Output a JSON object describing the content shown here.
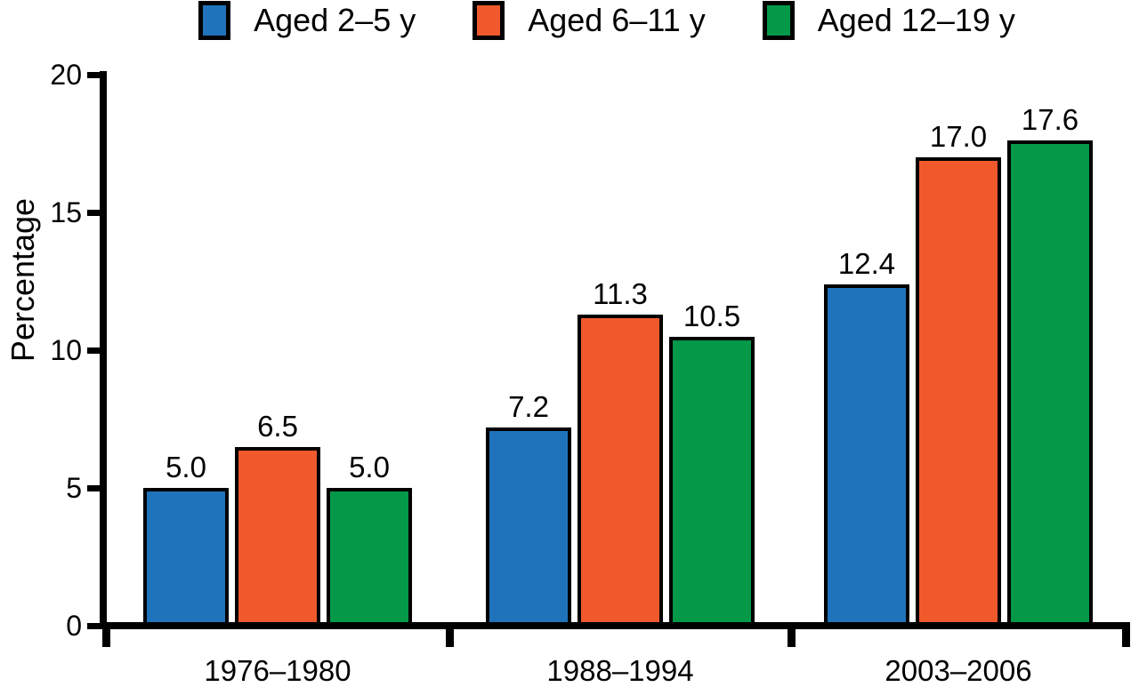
{
  "chart_data": {
    "type": "bar",
    "title": "",
    "ylabel": "Percentage",
    "xlabel": "",
    "ylim": [
      0,
      20
    ],
    "yticks": [
      0,
      5,
      10,
      15,
      20
    ],
    "grid": false,
    "legend_position": "top",
    "background_color": "#FFFFFF",
    "axis_color": "#000000",
    "categories": [
      "1976–1980",
      "1988–1994",
      "2003–2006"
    ],
    "series": [
      {
        "name": "Aged 2–5 y",
        "color": "#1F73BA",
        "values": [
          5.0,
          7.2,
          12.4
        ],
        "value_labels": [
          "5.0",
          "7.2",
          "12.4"
        ]
      },
      {
        "name": "Aged 6–11 y",
        "color": "#F0592C",
        "values": [
          6.5,
          11.3,
          17.0
        ],
        "value_labels": [
          "6.5",
          "11.3",
          "17.0"
        ]
      },
      {
        "name": "Aged 12–19 y",
        "color": "#049949",
        "values": [
          5.0,
          10.5,
          17.6
        ],
        "value_labels": [
          "5.0",
          "10.5",
          "17.6"
        ]
      }
    ]
  }
}
